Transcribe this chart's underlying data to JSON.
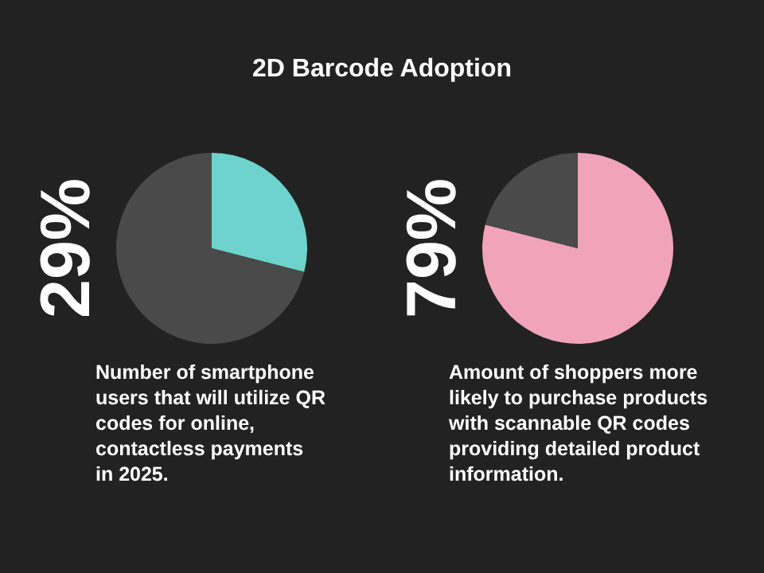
{
  "chart_data": [
    {
      "type": "pie",
      "title": "2D Barcode Adoption",
      "categories": [
        null,
        null
      ],
      "values": [
        29,
        71
      ],
      "colors": [
        "#6dd3cc",
        "#4a4a4a"
      ],
      "annotations": [
        "29%",
        "Number of smartphone\nusers that will utilize QR\ncodes for online,\ncontactless payments\nin 2025."
      ]
    },
    {
      "type": "pie",
      "categories": [
        null,
        null
      ],
      "values": [
        79,
        21
      ],
      "colors": [
        "#f0a3bb",
        "#4a4a4a"
      ],
      "annotations": [
        "79%",
        "Amount of shoppers more\nlikely to purchase products\nwith scannable QR codes\nproviding detailed product\ninformation."
      ]
    }
  ]
}
